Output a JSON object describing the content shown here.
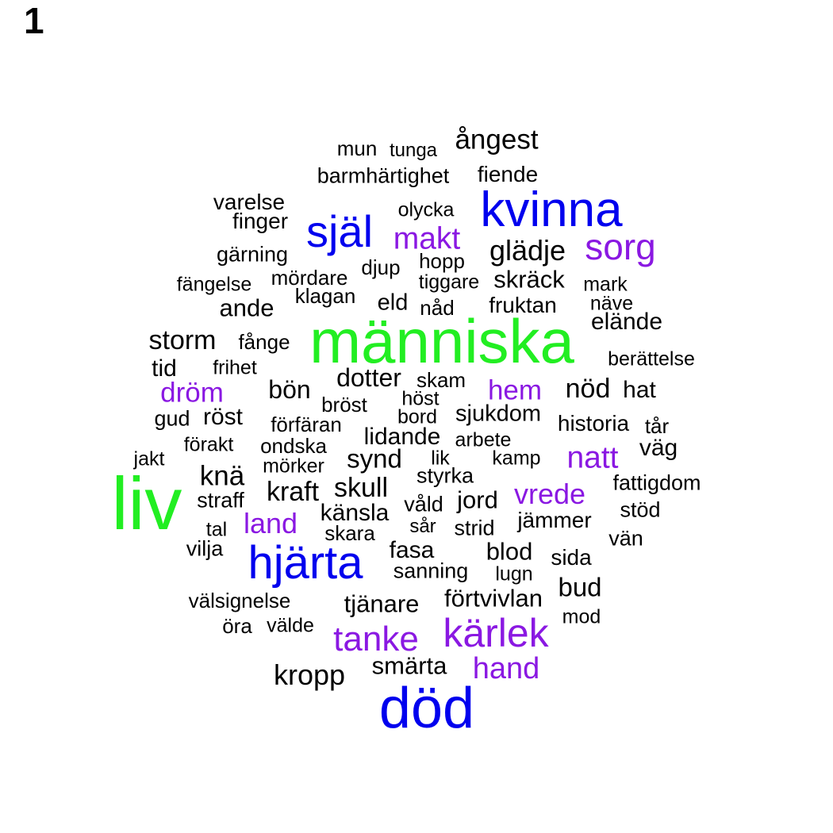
{
  "panel_number": "1",
  "colors": {
    "green": "#22ee22",
    "blue": "#0000ee",
    "purple": "#8a18e2",
    "black": "#000000"
  },
  "words": [
    {
      "text": "människa",
      "color": "green"
    },
    {
      "text": "liv",
      "color": "green"
    },
    {
      "text": "död",
      "color": "blue"
    },
    {
      "text": "hjärta",
      "color": "blue"
    },
    {
      "text": "kvinna",
      "color": "blue"
    },
    {
      "text": "själ",
      "color": "blue"
    },
    {
      "text": "kärlek",
      "color": "purple"
    },
    {
      "text": "tanke",
      "color": "purple"
    },
    {
      "text": "sorg",
      "color": "purple"
    },
    {
      "text": "makt",
      "color": "purple"
    },
    {
      "text": "natt",
      "color": "purple"
    },
    {
      "text": "hand",
      "color": "purple"
    },
    {
      "text": "vrede",
      "color": "purple"
    },
    {
      "text": "land",
      "color": "purple"
    },
    {
      "text": "dröm",
      "color": "purple"
    },
    {
      "text": "hem",
      "color": "purple"
    },
    {
      "text": "ångest",
      "color": "black"
    },
    {
      "text": "mun",
      "color": "black"
    },
    {
      "text": "tunga",
      "color": "black"
    },
    {
      "text": "barmhärtighet",
      "color": "black"
    },
    {
      "text": "fiende",
      "color": "black"
    },
    {
      "text": "varelse",
      "color": "black"
    },
    {
      "text": "finger",
      "color": "black"
    },
    {
      "text": "olycka",
      "color": "black"
    },
    {
      "text": "glädje",
      "color": "black"
    },
    {
      "text": "gärning",
      "color": "black"
    },
    {
      "text": "hopp",
      "color": "black"
    },
    {
      "text": "djup",
      "color": "black"
    },
    {
      "text": "fängelse",
      "color": "black"
    },
    {
      "text": "mördare",
      "color": "black"
    },
    {
      "text": "tiggare",
      "color": "black"
    },
    {
      "text": "skräck",
      "color": "black"
    },
    {
      "text": "mark",
      "color": "black"
    },
    {
      "text": "klagan",
      "color": "black"
    },
    {
      "text": "ande",
      "color": "black"
    },
    {
      "text": "eld",
      "color": "black"
    },
    {
      "text": "nåd",
      "color": "black"
    },
    {
      "text": "fruktan",
      "color": "black"
    },
    {
      "text": "näve",
      "color": "black"
    },
    {
      "text": "elände",
      "color": "black"
    },
    {
      "text": "storm",
      "color": "black"
    },
    {
      "text": "fånge",
      "color": "black"
    },
    {
      "text": "berättelse",
      "color": "black"
    },
    {
      "text": "tid",
      "color": "black"
    },
    {
      "text": "frihet",
      "color": "black"
    },
    {
      "text": "dotter",
      "color": "black"
    },
    {
      "text": "skam",
      "color": "black"
    },
    {
      "text": "nöd",
      "color": "black"
    },
    {
      "text": "hat",
      "color": "black"
    },
    {
      "text": "bön",
      "color": "black"
    },
    {
      "text": "bröst",
      "color": "black"
    },
    {
      "text": "höst",
      "color": "black"
    },
    {
      "text": "bord",
      "color": "black"
    },
    {
      "text": "sjukdom",
      "color": "black"
    },
    {
      "text": "gud",
      "color": "black"
    },
    {
      "text": "röst",
      "color": "black"
    },
    {
      "text": "förfäran",
      "color": "black"
    },
    {
      "text": "historia",
      "color": "black"
    },
    {
      "text": "tår",
      "color": "black"
    },
    {
      "text": "lidande",
      "color": "black"
    },
    {
      "text": "arbete",
      "color": "black"
    },
    {
      "text": "förakt",
      "color": "black"
    },
    {
      "text": "ondska",
      "color": "black"
    },
    {
      "text": "väg",
      "color": "black"
    },
    {
      "text": "jakt",
      "color": "black"
    },
    {
      "text": "mörker",
      "color": "black"
    },
    {
      "text": "synd",
      "color": "black"
    },
    {
      "text": "lik",
      "color": "black"
    },
    {
      "text": "kamp",
      "color": "black"
    },
    {
      "text": "knä",
      "color": "black"
    },
    {
      "text": "styrka",
      "color": "black"
    },
    {
      "text": "fattigdom",
      "color": "black"
    },
    {
      "text": "kraft",
      "color": "black"
    },
    {
      "text": "skull",
      "color": "black"
    },
    {
      "text": "straff",
      "color": "black"
    },
    {
      "text": "jord",
      "color": "black"
    },
    {
      "text": "våld",
      "color": "black"
    },
    {
      "text": "känsla",
      "color": "black"
    },
    {
      "text": "stöd",
      "color": "black"
    },
    {
      "text": "jämmer",
      "color": "black"
    },
    {
      "text": "tal",
      "color": "black"
    },
    {
      "text": "skara",
      "color": "black"
    },
    {
      "text": "sår",
      "color": "black"
    },
    {
      "text": "strid",
      "color": "black"
    },
    {
      "text": "vän",
      "color": "black"
    },
    {
      "text": "vilja",
      "color": "black"
    },
    {
      "text": "fasa",
      "color": "black"
    },
    {
      "text": "blod",
      "color": "black"
    },
    {
      "text": "sida",
      "color": "black"
    },
    {
      "text": "sanning",
      "color": "black"
    },
    {
      "text": "lugn",
      "color": "black"
    },
    {
      "text": "bud",
      "color": "black"
    },
    {
      "text": "välsignelse",
      "color": "black"
    },
    {
      "text": "tjänare",
      "color": "black"
    },
    {
      "text": "förtvivlan",
      "color": "black"
    },
    {
      "text": "mod",
      "color": "black"
    },
    {
      "text": "öra",
      "color": "black"
    },
    {
      "text": "välde",
      "color": "black"
    },
    {
      "text": "smärta",
      "color": "black"
    },
    {
      "text": "kropp",
      "color": "black"
    }
  ]
}
